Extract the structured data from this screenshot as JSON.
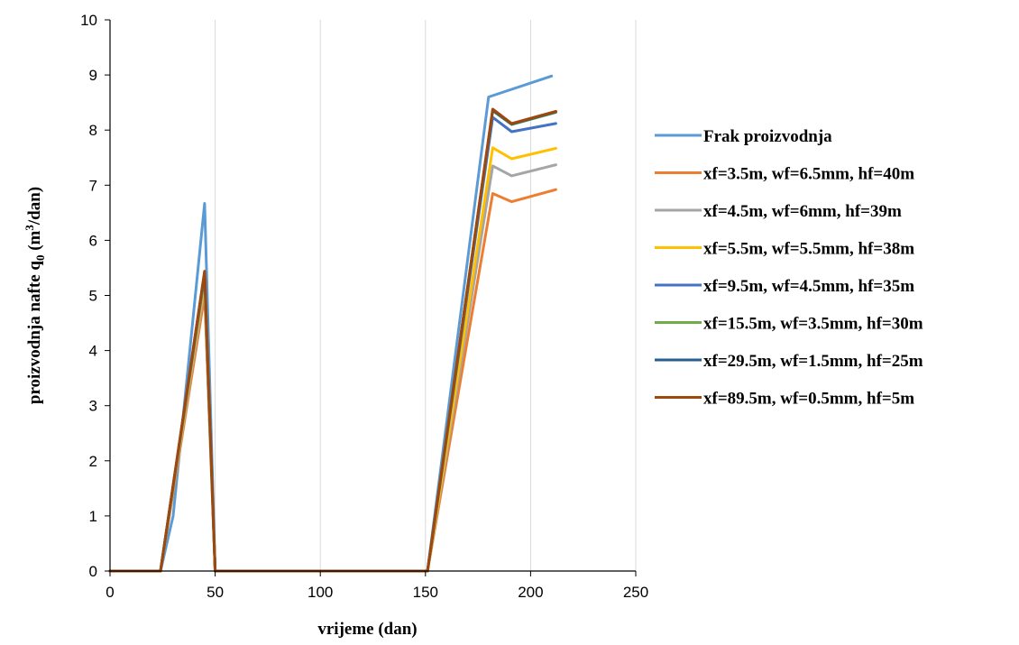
{
  "chart_data": {
    "type": "line",
    "title": "",
    "xlabel": "vrijeme (dan)",
    "ylabel_main": "proizvodnja nafte q",
    "ylabel_sub": "0",
    "ylabel_unit_pre": " (m",
    "ylabel_unit_sup": "3",
    "ylabel_unit_post": "/dan)",
    "xlim": [
      0,
      250
    ],
    "ylim": [
      0,
      10
    ],
    "xticks": [
      "0",
      "50",
      "100",
      "150",
      "200",
      "250"
    ],
    "yticks": [
      "0",
      "1",
      "2",
      "3",
      "4",
      "5",
      "6",
      "7",
      "8",
      "9",
      "10"
    ],
    "grid": "vertical",
    "legend_position": "right",
    "series": [
      {
        "name": "Frak proizvodnja",
        "color": "#5b9bd5",
        "x": [
          0,
          24,
          30,
          45,
          50,
          151,
          180,
          210
        ],
        "y": [
          0,
          0,
          1,
          6.67,
          0,
          0,
          8.6,
          8.98
        ]
      },
      {
        "name": "xf=3.5m, wf=6.5mm, hf=40m",
        "color": "#ed7d31",
        "x": [
          0,
          24,
          45,
          50,
          151,
          182,
          191,
          212
        ],
        "y": [
          0,
          0,
          5.0,
          0,
          0,
          6.85,
          6.7,
          6.92
        ]
      },
      {
        "name": "xf=4.5m, wf=6mm, hf=39m",
        "color": "#a5a5a5",
        "x": [
          0,
          24,
          45,
          50,
          151,
          182,
          191,
          212
        ],
        "y": [
          0,
          0,
          5.15,
          0,
          0,
          7.35,
          7.17,
          7.37
        ]
      },
      {
        "name": "xf=5.5m, wf=5.5mm, hf=38m",
        "color": "#ffc000",
        "x": [
          0,
          24,
          45,
          50,
          151,
          182,
          191,
          212
        ],
        "y": [
          0,
          0,
          5.25,
          0,
          0,
          7.68,
          7.48,
          7.67
        ]
      },
      {
        "name": "xf=9.5m, wf=4.5mm, hf=35m",
        "color": "#4472c4",
        "x": [
          0,
          24,
          45,
          50,
          151,
          182,
          191,
          212
        ],
        "y": [
          0,
          0,
          5.35,
          0,
          0,
          8.23,
          7.97,
          8.12
        ]
      },
      {
        "name": "xf=15.5m, wf=3.5mm, hf=30m",
        "color": "#70ad47",
        "x": [
          0,
          24,
          45,
          50,
          151,
          182,
          191,
          212
        ],
        "y": [
          0,
          0,
          5.4,
          0,
          0,
          8.35,
          8.1,
          8.32
        ]
      },
      {
        "name": "xf=29.5m, wf=1.5mm, hf=25m",
        "color": "#255e91",
        "x": [
          0,
          24,
          45,
          50,
          151,
          182,
          191,
          212
        ],
        "y": [
          0,
          0,
          5.42,
          0,
          0,
          8.36,
          8.11,
          8.33
        ]
      },
      {
        "name": "xf=89.5m, wf=0.5mm, hf=5m",
        "color": "#9e480e",
        "x": [
          0,
          24,
          45,
          50,
          151,
          182,
          191,
          212
        ],
        "y": [
          0,
          0,
          5.44,
          0,
          0,
          8.38,
          8.12,
          8.34
        ]
      }
    ]
  }
}
